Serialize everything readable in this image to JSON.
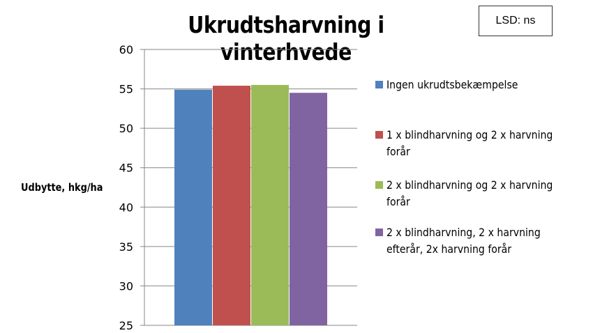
{
  "chart_data": {
    "type": "bar",
    "title": "Ukrudtsharvning i vinterhvede",
    "ylabel": "Udbytte, hkg/ha",
    "xlabel": "",
    "ylim": [
      25,
      60
    ],
    "yticks": [
      25,
      30,
      35,
      40,
      45,
      50,
      55,
      60
    ],
    "grid": true,
    "legend_position": "right",
    "annotation": "LSD: ns",
    "series": [
      {
        "name": "Ingen ukrudtsbekæmpelse",
        "value": 54.9,
        "color": "#4F81BD"
      },
      {
        "name": "1 x blindharvning og 2 x harvning  forår",
        "value": 55.4,
        "color": "#C0504D"
      },
      {
        "name": "2 x blindharvning og 2 x harvning  forår",
        "value": 55.5,
        "color": "#9BBB59"
      },
      {
        "name": "2 x blindharvning, 2 x harvning efterår, 2x harvning forår",
        "value": 54.5,
        "color": "#8064A2"
      }
    ]
  }
}
